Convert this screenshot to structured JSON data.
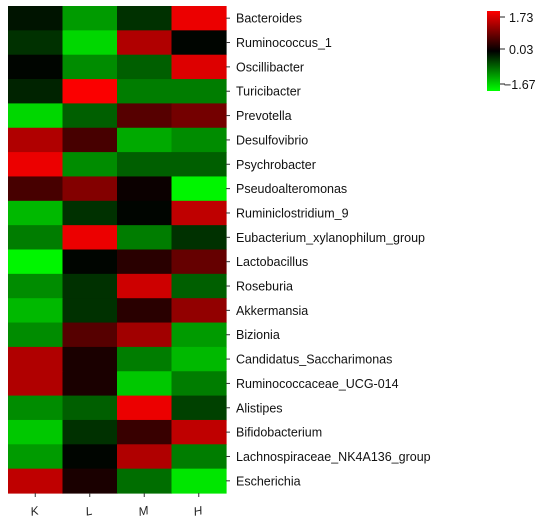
{
  "chart_data": {
    "type": "heatmap",
    "title": "",
    "xlabel": "",
    "ylabel": "",
    "columns": [
      "K",
      "L",
      "M",
      "H"
    ],
    "rows": [
      {
        "name": "Bacteroides",
        "values": [
          -0.1,
          -1.0,
          -0.3,
          1.6
        ]
      },
      {
        "name": "Ruminococcus_1",
        "values": [
          -0.3,
          -1.4,
          1.2,
          0.0
        ]
      },
      {
        "name": "Oscillibacter",
        "values": [
          0.0,
          -0.9,
          -0.6,
          1.5
        ]
      },
      {
        "name": "Turicibacter",
        "values": [
          -0.2,
          1.7,
          -0.8,
          -0.8
        ]
      },
      {
        "name": "Prevotella",
        "values": [
          -1.4,
          -0.6,
          0.6,
          0.8
        ]
      },
      {
        "name": "Desulfovibrio",
        "values": [
          1.2,
          0.5,
          -1.1,
          -0.9
        ]
      },
      {
        "name": "Psychrobacter",
        "values": [
          1.6,
          -0.9,
          -0.6,
          -0.6
        ]
      },
      {
        "name": "Pseudoalteromonas",
        "values": [
          0.5,
          0.9,
          0.1,
          -1.6
        ]
      },
      {
        "name": "Ruminiclostridium_9",
        "values": [
          -1.2,
          -0.3,
          0.0,
          1.3
        ]
      },
      {
        "name": "Eubacterium_xylanophilum_group",
        "values": [
          -0.8,
          1.6,
          -0.8,
          -0.3
        ]
      },
      {
        "name": "Lactobacillus",
        "values": [
          -1.6,
          0.0,
          0.3,
          0.7
        ]
      },
      {
        "name": "Roseburia",
        "values": [
          -0.9,
          -0.3,
          1.4,
          -0.6
        ]
      },
      {
        "name": "Akkermansia",
        "values": [
          -1.2,
          -0.3,
          0.3,
          1.0
        ]
      },
      {
        "name": "Bizionia",
        "values": [
          -0.9,
          0.6,
          1.1,
          -1.0
        ]
      },
      {
        "name": "Candidatus_Saccharimonas",
        "values": [
          1.2,
          0.2,
          -0.8,
          -1.2
        ]
      },
      {
        "name": "Ruminococcaceae_UCG-014",
        "values": [
          1.2,
          0.2,
          -1.3,
          -0.8
        ]
      },
      {
        "name": "Alistipes",
        "values": [
          -0.9,
          -0.6,
          1.6,
          -0.4
        ]
      },
      {
        "name": "Bifidobacterium",
        "values": [
          -1.3,
          -0.3,
          0.4,
          1.3
        ]
      },
      {
        "name": "Lachnospiraceae_NK4A136_group",
        "values": [
          -1.0,
          0.0,
          1.2,
          -0.8
        ]
      },
      {
        "name": "Escherichia",
        "values": [
          1.3,
          0.2,
          -0.7,
          -1.5
        ]
      }
    ],
    "color_scale": {
      "min": -1.67,
      "mid": 0.03,
      "max": 1.73,
      "low_color": "#00ff00",
      "mid_color": "#000000",
      "high_color": "#ff0000"
    },
    "legend_ticks": [
      "1.73",
      "0.03",
      "−1.67"
    ],
    "legend_placement": "top-right",
    "grid": false
  }
}
